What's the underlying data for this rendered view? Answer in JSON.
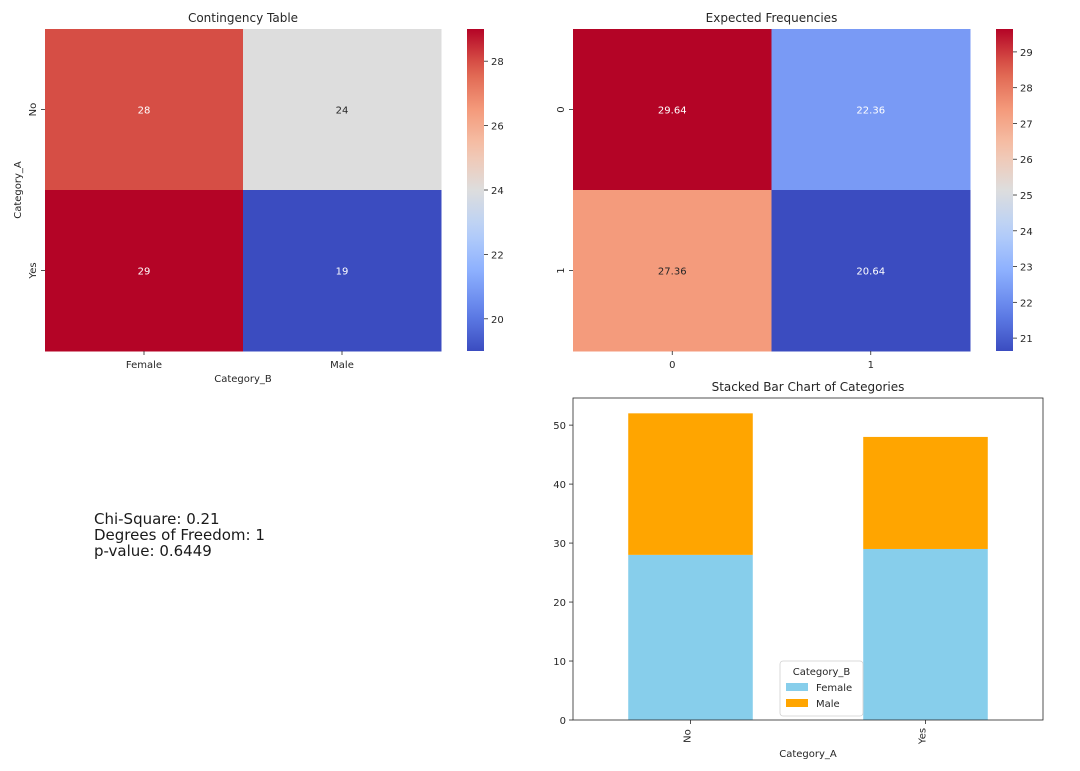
{
  "chart_data": [
    {
      "type": "heatmap",
      "title": "Contingency Table",
      "xlabel": "Category_B",
      "ylabel": "Category_A",
      "x_categories": [
        "Female",
        "Male"
      ],
      "y_categories": [
        "No",
        "Yes"
      ],
      "values": [
        [
          28,
          24
        ],
        [
          29,
          19
        ]
      ],
      "colormap": "coolwarm",
      "vmin": 19,
      "vmax": 29,
      "colorbar_ticks": [
        20,
        22,
        24,
        26,
        28
      ]
    },
    {
      "type": "heatmap",
      "title": "Expected Frequencies",
      "xlabel": "",
      "ylabel": "",
      "x_categories": [
        "0",
        "1"
      ],
      "y_categories": [
        "0",
        "1"
      ],
      "values": [
        [
          29.64,
          22.36
        ],
        [
          27.36,
          20.64
        ]
      ],
      "colormap": "coolwarm",
      "vmin": 20.64,
      "vmax": 29.64,
      "colorbar_ticks": [
        21,
        22,
        23,
        24,
        25,
        26,
        27,
        28,
        29
      ]
    },
    {
      "type": "bar",
      "stacked": true,
      "title": "Stacked Bar Chart of Categories",
      "xlabel": "Category_A",
      "ylabel": "",
      "categories": [
        "No",
        "Yes"
      ],
      "series": [
        {
          "name": "Female",
          "values": [
            28,
            29
          ],
          "color": "#87ceeb"
        },
        {
          "name": "Male",
          "values": [
            24,
            19
          ],
          "color": "#ffa500"
        }
      ],
      "ylim": [
        0,
        54.6
      ],
      "yticks": [
        0,
        10,
        20,
        30,
        40,
        50
      ],
      "legend": {
        "title": "Category_B",
        "position": "lower-center"
      }
    }
  ],
  "stats": {
    "chi_square": "Chi-Square: 0.21",
    "dof": "Degrees of Freedom: 1",
    "p_value": "p-value: 0.6449"
  }
}
